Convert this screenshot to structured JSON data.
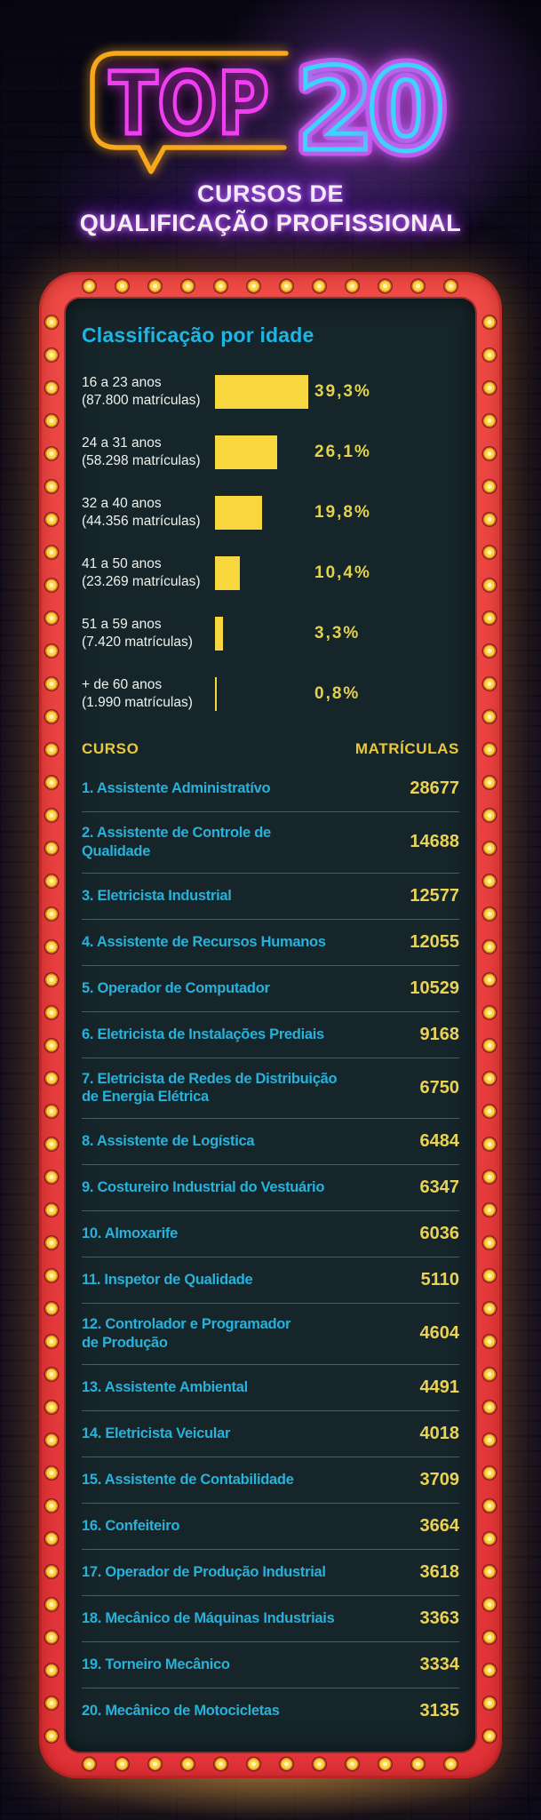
{
  "header": {
    "sign_word": "TOP",
    "sign_number": "20",
    "sign_digits": [
      "2",
      "0"
    ],
    "title_line1": "CURSOS DE",
    "title_line2": "QUALIFICAÇÃO PROFISSIONAL"
  },
  "colors": {
    "marquee_red": "#e83a3e",
    "bulb_yellow": "#fbd348",
    "panel_bg": "#16252a",
    "accent_cyan": "#25b6e3",
    "bar_yellow": "#f8d73e",
    "value_yellow": "#e9d255",
    "neon_magenta": "#f23ef2",
    "neon_blue": "#3fd2fa",
    "neon_amber": "#f7a81b"
  },
  "chart_data": {
    "type": "bar",
    "orientation": "horizontal",
    "title": "Classificação por idade",
    "unit": "%",
    "xlim": [
      0,
      39.3
    ],
    "categories": [
      "16 a 23 anos",
      "24 a 31 anos",
      "32 a 40 anos",
      "41 a 50 anos",
      "51 a 59 anos",
      "+ de 60 anos"
    ],
    "sublabels": [
      "(87.800 matrículas)",
      "(58.298 matrículas)",
      "(44.356 matrículas)",
      "(23.269 matrículas)",
      "(7.420 matrículas)",
      "(1.990 matrículas)"
    ],
    "values": [
      39.3,
      26.1,
      19.8,
      10.4,
      3.3,
      0.8
    ],
    "value_labels": [
      "39,3%",
      "26,1%",
      "19,8%",
      "10,4%",
      "3,3%",
      "0,8%"
    ]
  },
  "table": {
    "headers": {
      "course": "CURSO",
      "enrollments": "MATRÍCULAS"
    },
    "rows": [
      {
        "name": "1. Assistente Administratívo",
        "value": "28677"
      },
      {
        "name": "2. Assistente de Controle de\nQualidade",
        "value": "14688"
      },
      {
        "name": "3. Eletricista Industrial",
        "value": "12577"
      },
      {
        "name": "4. Assistente de Recursos Humanos",
        "value": "12055"
      },
      {
        "name": "5. Operador de Computador",
        "value": "10529"
      },
      {
        "name": "6. Eletricista de Instalações Prediais",
        "value": "9168"
      },
      {
        "name": "7. Eletricista de Redes de Distribuição\nde Energia Elétrica",
        "value": "6750"
      },
      {
        "name": "8. Assistente de Logística",
        "value": "6484"
      },
      {
        "name": "9. Costureiro Industrial do Vestuário",
        "value": "6347"
      },
      {
        "name": "10. Almoxarife",
        "value": "6036"
      },
      {
        "name": "11. Inspetor de Qualidade",
        "value": "5110"
      },
      {
        "name": "12. Controlador e Programador\nde Produção",
        "value": "4604"
      },
      {
        "name": "13. Assistente Ambiental",
        "value": "4491"
      },
      {
        "name": "14. Eletricista Veicular",
        "value": "4018"
      },
      {
        "name": "15. Assistente de Contabilidade",
        "value": "3709"
      },
      {
        "name": "16. Confeiteiro",
        "value": "3664"
      },
      {
        "name": "17. Operador de Produção Industrial",
        "value": "3618"
      },
      {
        "name": "18. Mecânico de Máquinas Industriais",
        "value": "3363"
      },
      {
        "name": "19. Torneiro Mecânico",
        "value": "3334"
      },
      {
        "name": "20. Mecânico de Motocicletas",
        "value": "3135"
      }
    ]
  }
}
